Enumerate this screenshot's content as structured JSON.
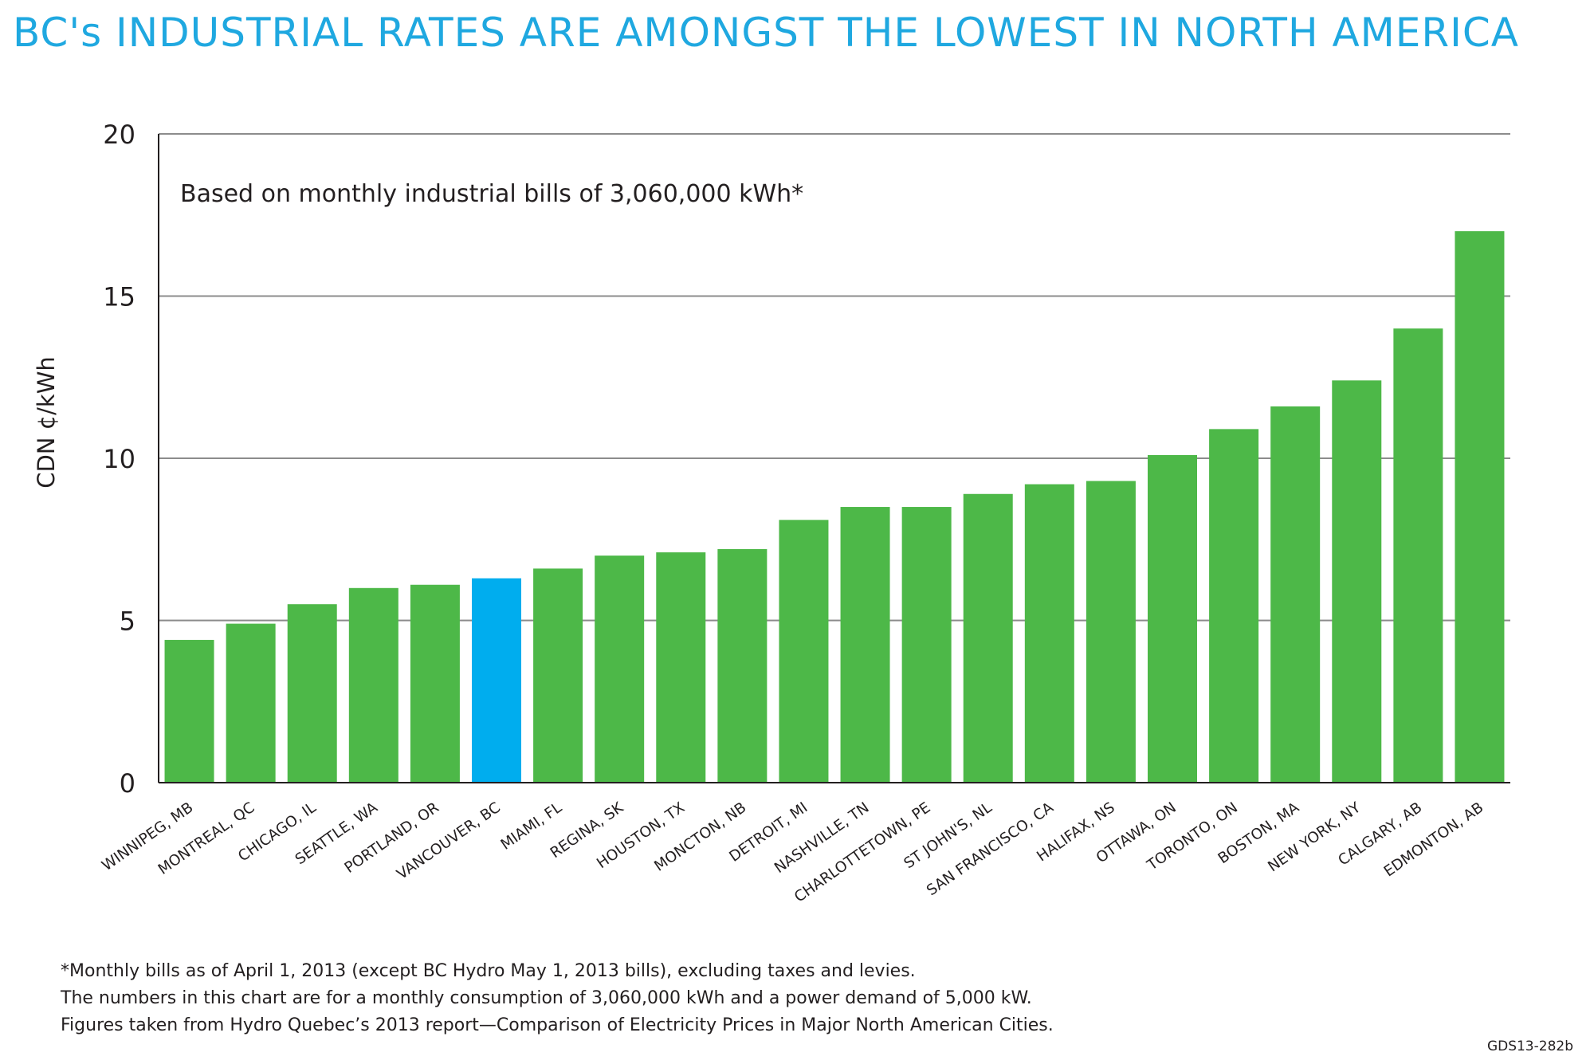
{
  "title": "BC's INDUSTRIAL RATES ARE AMONGST THE LOWEST IN NORTH AMERICA",
  "colors": {
    "title": "#1fa8e0",
    "bar": "#4db848",
    "highlight": "#00adee",
    "grid": "#8c8c8c"
  },
  "chart_data": {
    "type": "bar",
    "title": "BC's INDUSTRIAL RATES ARE AMONGST THE LOWEST IN NORTH AMERICA",
    "annotation": "Based on monthly industrial bills of 3,060,000 kWh*",
    "xlabel": "",
    "ylabel": "CDN ¢/kWh",
    "ylim": [
      0,
      20
    ],
    "yticks": [
      0,
      5,
      10,
      15,
      20
    ],
    "grid": true,
    "highlight": "VANCOUVER, BC",
    "categories": [
      "WINNIPEG, MB",
      "MONTREAL, QC",
      "CHICAGO, IL",
      "SEATTLE, WA",
      "PORTLAND, OR",
      "VANCOUVER, BC",
      "MIAMI, FL",
      "REGINA, SK",
      "HOUSTON, TX",
      "MONCTON, NB",
      "DETROIT, MI",
      "NASHVILLE, TN",
      "CHARLOTTETOWN, PE",
      "ST JOHN'S, NL",
      "SAN FRANCISCO, CA",
      "HALIFAX, NS",
      "OTTAWA, ON",
      "TORONTO, ON",
      "BOSTON, MA",
      "NEW YORK, NY",
      "CALGARY, AB",
      "EDMONTON, AB"
    ],
    "values": [
      4.4,
      4.9,
      5.5,
      6.0,
      6.1,
      6.3,
      6.6,
      7.0,
      7.1,
      7.2,
      8.1,
      8.5,
      8.5,
      8.9,
      9.2,
      9.3,
      10.1,
      10.9,
      11.6,
      12.4,
      14.0,
      17.0
    ]
  },
  "footnotes": {
    "line1": "*Monthly bills as of April 1, 2013 (except BC Hydro May 1, 2013 bills), excluding taxes and levies.",
    "line2": "The numbers in this chart are for a monthly consumption of 3,060,000 kWh and a power demand of 5,000 kW.",
    "line3": "Figures taken from Hydro Quebec’s 2013 report—Comparison of Electricity Prices in Major North American Cities."
  },
  "doc_code": "GDS13-282b"
}
